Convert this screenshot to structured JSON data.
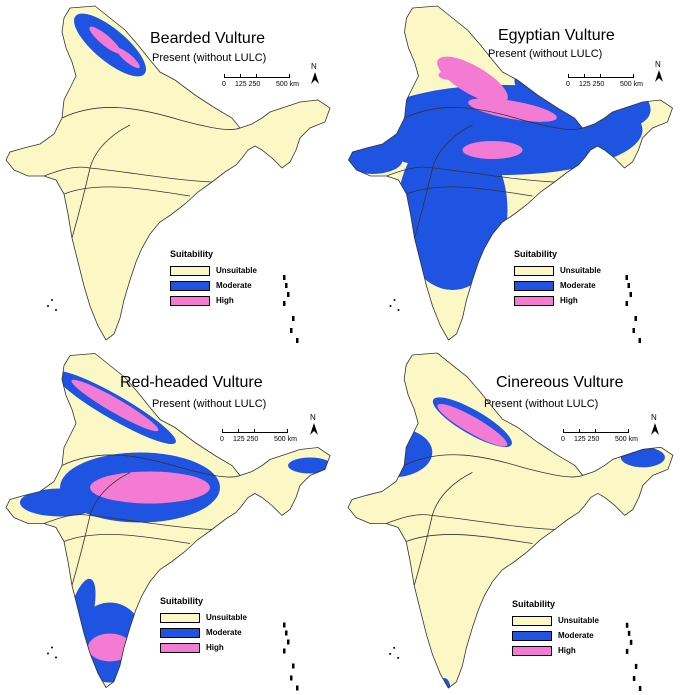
{
  "colors": {
    "unsuitable": "#fcf8c6",
    "moderate": "#1f53e1",
    "high": "#f47bd3",
    "outline": "#333333"
  },
  "legend": {
    "title": "Suitability",
    "items": [
      "Unsuitable",
      "Moderate",
      "High"
    ]
  },
  "scale_bar": {
    "labels": [
      "0",
      "125 250",
      "500 km"
    ]
  },
  "north_arrow": "N",
  "subtitle": "Present (without LULC)",
  "panels": [
    {
      "title": "Bearded Vulture"
    },
    {
      "title": "Egyptian Vulture"
    },
    {
      "title": "Red-headed Vulture"
    },
    {
      "title": "Cinereous Vulture"
    }
  ]
}
